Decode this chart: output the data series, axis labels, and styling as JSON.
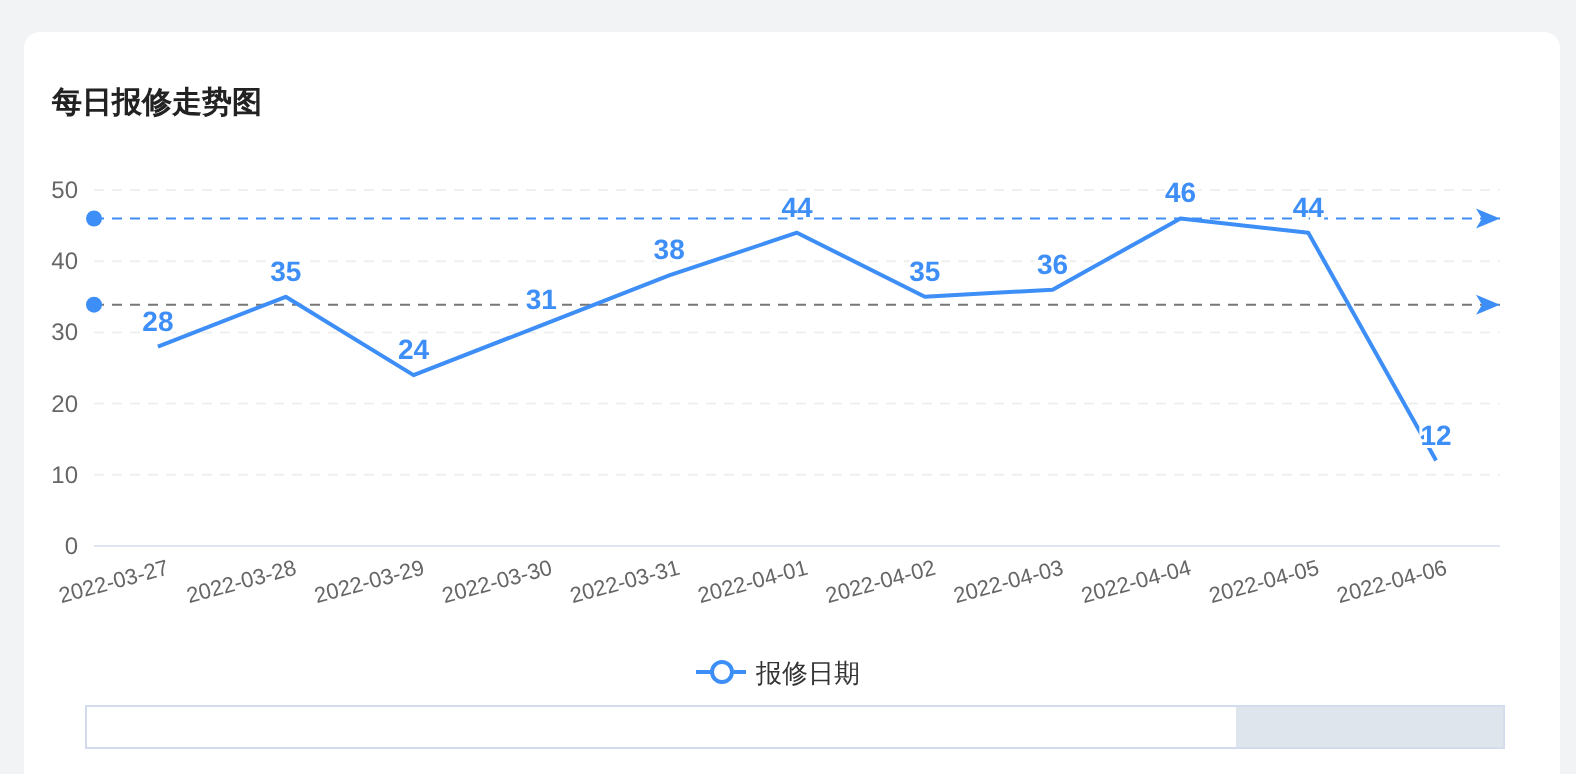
{
  "chart_data": {
    "type": "line",
    "title": "每日报修走势图",
    "categories": [
      "2022-03-27",
      "2022-03-28",
      "2022-03-29",
      "2022-03-30",
      "2022-03-31",
      "2022-04-01",
      "2022-04-02",
      "2022-04-03",
      "2022-04-04",
      "2022-04-05",
      "2022-04-06"
    ],
    "series": [
      {
        "name": "报修日期",
        "color": "#3e8ef7",
        "values": [
          28,
          35,
          24,
          31,
          38,
          44,
          35,
          36,
          46,
          44,
          12
        ]
      }
    ],
    "ylim": [
      0,
      50
    ],
    "yticks": [
      0,
      10,
      20,
      30,
      40,
      50
    ],
    "grid": "y",
    "legend": "bottom",
    "data_labels": true,
    "marker": "none",
    "line_style": "solid",
    "ref_lines": [
      {
        "axis": "y",
        "value": 46,
        "color": "#3e8ef7",
        "line_style": "dashed"
      },
      {
        "axis": "y",
        "value": 33.9,
        "color": "#777777",
        "line_style": "dashed"
      }
    ]
  }
}
